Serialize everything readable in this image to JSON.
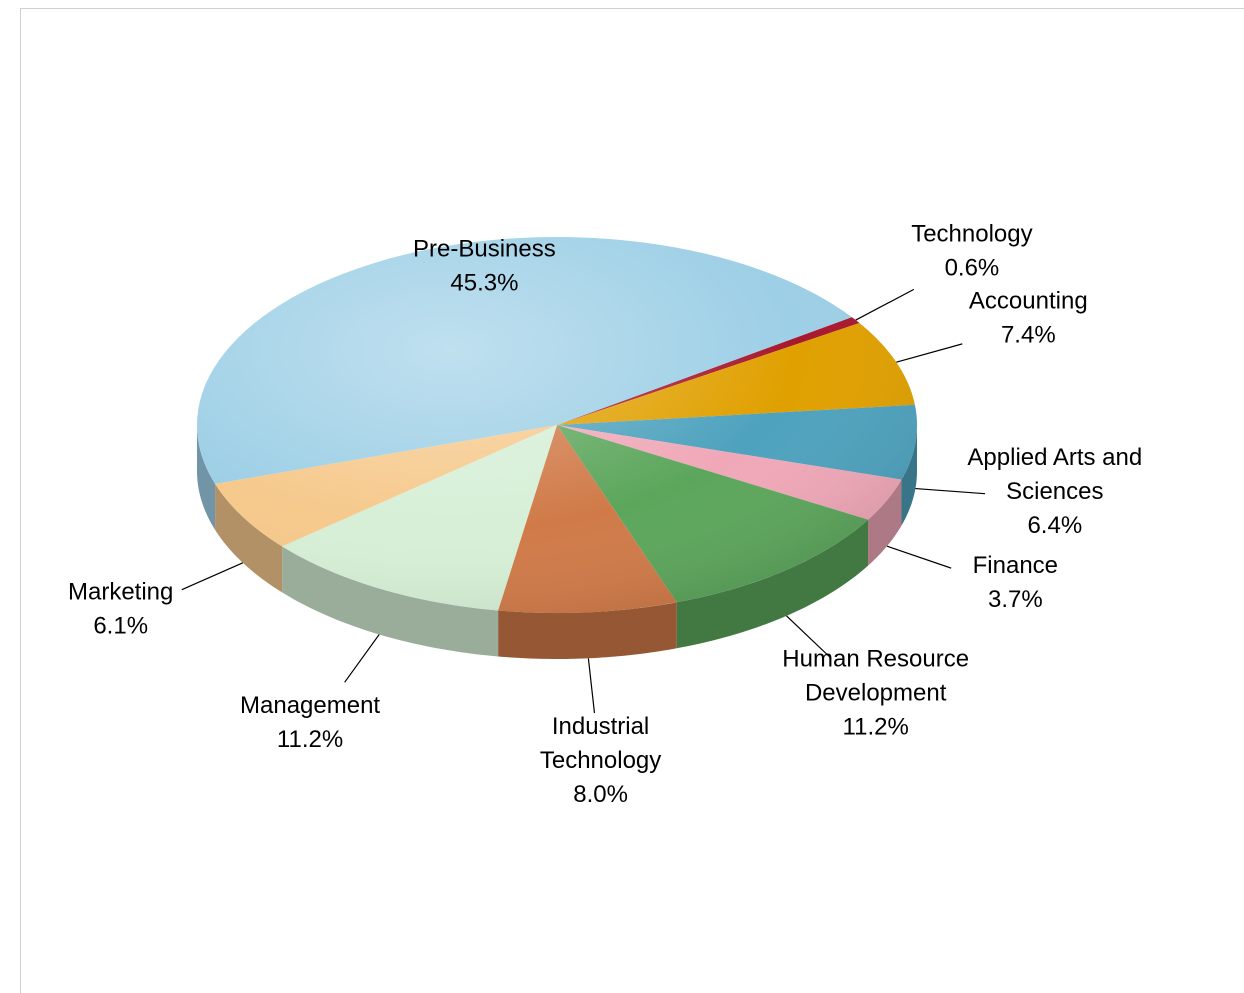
{
  "chart_data": {
    "type": "pie",
    "categories": [
      "Technology",
      "Accounting",
      "Applied Arts and Sciences",
      "Finance",
      "Human Resource Development",
      "Industrial Technology",
      "Management",
      "Marketing",
      "Pre-Business"
    ],
    "values": [
      0.6,
      7.4,
      6.4,
      3.7,
      11.2,
      8.0,
      11.2,
      6.1,
      45.3
    ],
    "value_labels": [
      "0.6%",
      "7.4%",
      "6.4%",
      "3.7%",
      "11.2%",
      "8.0%",
      "11.2%",
      "6.1%",
      "45.3%"
    ],
    "colors": [
      "#a8182e",
      "#e0a000",
      "#4ea2be",
      "#f0a8b8",
      "#5ca65c",
      "#d07a48",
      "#d6efd6",
      "#f6c98c",
      "#9dcfe6"
    ]
  }
}
